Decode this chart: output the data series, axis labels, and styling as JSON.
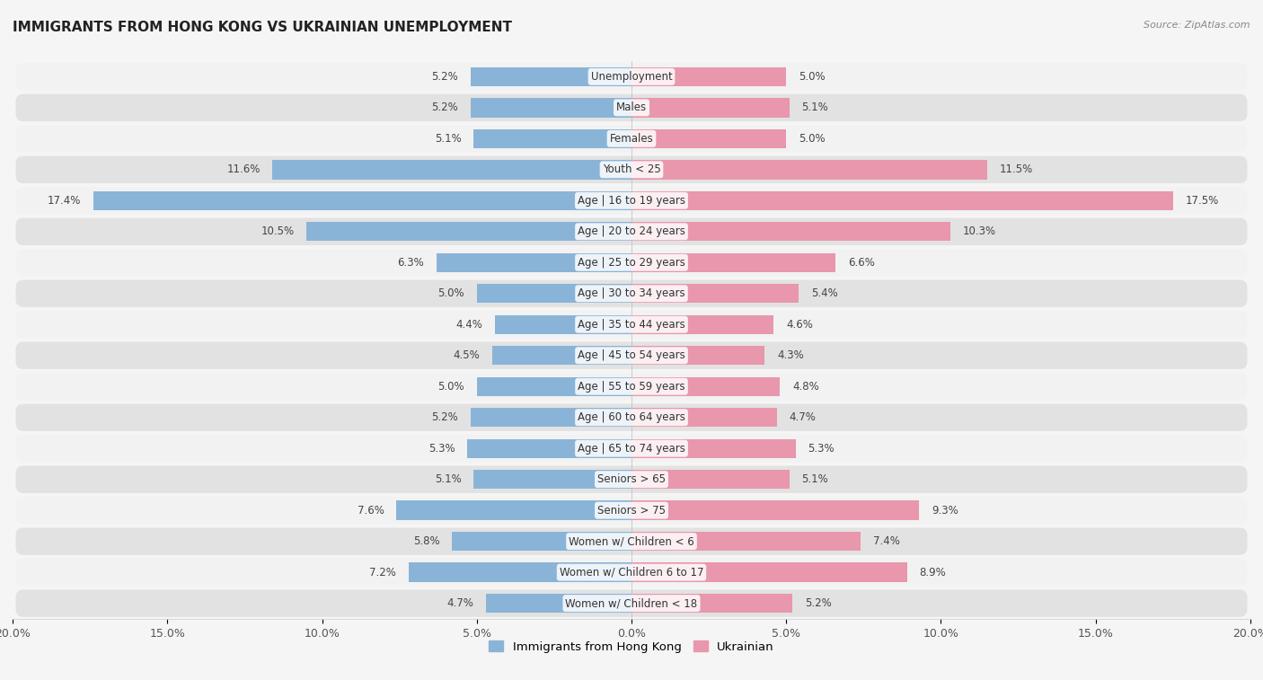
{
  "title": "IMMIGRANTS FROM HONG KONG VS UKRAINIAN UNEMPLOYMENT",
  "source": "Source: ZipAtlas.com",
  "categories": [
    "Unemployment",
    "Males",
    "Females",
    "Youth < 25",
    "Age | 16 to 19 years",
    "Age | 20 to 24 years",
    "Age | 25 to 29 years",
    "Age | 30 to 34 years",
    "Age | 35 to 44 years",
    "Age | 45 to 54 years",
    "Age | 55 to 59 years",
    "Age | 60 to 64 years",
    "Age | 65 to 74 years",
    "Seniors > 65",
    "Seniors > 75",
    "Women w/ Children < 6",
    "Women w/ Children 6 to 17",
    "Women w/ Children < 18"
  ],
  "hk_values": [
    5.2,
    5.2,
    5.1,
    11.6,
    17.4,
    10.5,
    6.3,
    5.0,
    4.4,
    4.5,
    5.0,
    5.2,
    5.3,
    5.1,
    7.6,
    5.8,
    7.2,
    4.7
  ],
  "ukr_values": [
    5.0,
    5.1,
    5.0,
    11.5,
    17.5,
    10.3,
    6.6,
    5.4,
    4.6,
    4.3,
    4.8,
    4.7,
    5.3,
    5.1,
    9.3,
    7.4,
    8.9,
    5.2
  ],
  "hk_color": "#8ab4d7",
  "ukr_color": "#e897ad",
  "xlim": 20.0,
  "bar_height": 0.62,
  "row_bg_light": "#f2f2f2",
  "row_bg_dark": "#e2e2e2",
  "fig_bg": "#f5f5f5",
  "title_fontsize": 11,
  "value_fontsize": 8.5,
  "cat_fontsize": 8.5,
  "legend_hk_label": "Immigrants from Hong Kong",
  "legend_ukr_label": "Ukrainian",
  "xtick_fontsize": 9
}
